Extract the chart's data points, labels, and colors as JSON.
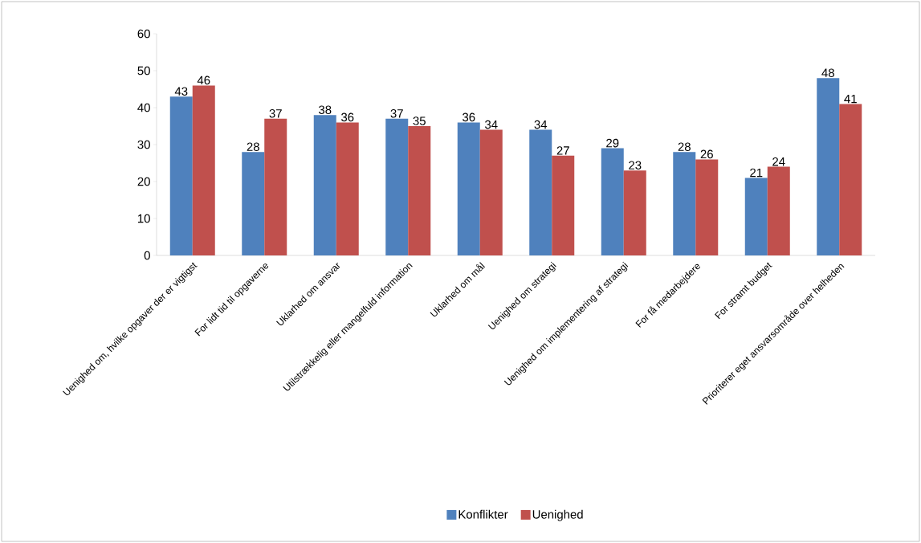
{
  "chart_data": {
    "type": "bar",
    "categories": [
      "Uenighed om, hvilke opgaver der er vigtigst",
      "For lidt tid til opgaverne",
      "Uklarhed om ansvar",
      "Utilstrækkelig eller mangelfuld information",
      "Uklarhed om mål",
      "Uenighed om strategi",
      "Uenighed om implementering af strategi",
      "For få medarbejdere",
      "For stramt budget",
      "Prioriterer eget ansvarsområde over helheden"
    ],
    "series": [
      {
        "name": "Konflikter",
        "color": "#4f81bd",
        "values": [
          43,
          28,
          38,
          37,
          36,
          34,
          29,
          28,
          21,
          48
        ]
      },
      {
        "name": "Uenighed",
        "color": "#c0504d",
        "values": [
          46,
          37,
          36,
          35,
          34,
          27,
          23,
          26,
          24,
          41
        ]
      }
    ],
    "ylim": [
      0,
      60
    ],
    "yticks": [
      0,
      10,
      20,
      30,
      40,
      50,
      60
    ],
    "grid": false,
    "legend": "bottom",
    "data_labels": true
  }
}
